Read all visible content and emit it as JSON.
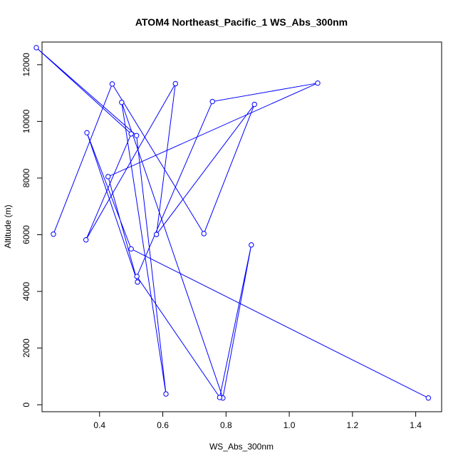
{
  "chart_data": {
    "type": "line",
    "title": "ATOM4 Northeast_Pacific_1 WS_Abs_300nm",
    "xlabel": "WS_Abs_300nm",
    "ylabel": "Altitude (m)",
    "xlim": [
      0.218,
      1.482
    ],
    "ylim": [
      -245,
      12800
    ],
    "x_ticks": [
      "0.4",
      "0.6",
      "0.8",
      "1.0",
      "1.2",
      "1.4"
    ],
    "y_ticks": [
      "0",
      "2000",
      "4000",
      "6000",
      "8000",
      "10000",
      "12000"
    ],
    "grid": false,
    "legend": "none",
    "color": "#0000ff",
    "markers": "open-circle",
    "series": [
      {
        "x": [
          0.254,
          0.44,
          0.73,
          0.89,
          0.58,
          0.64,
          0.357,
          0.5,
          0.2,
          0.517,
          0.61,
          0.47,
          0.79,
          0.88,
          0.78,
          0.518,
          0.757,
          1.09,
          0.427,
          0.52,
          0.36,
          0.5,
          1.44
        ],
        "y": [
          6020,
          11320,
          6040,
          10600,
          6010,
          11330,
          5820,
          9560,
          12600,
          9500,
          380,
          10670,
          240,
          5640,
          260,
          4530,
          10700,
          11350,
          8050,
          4330,
          9600,
          5500,
          240
        ]
      }
    ]
  }
}
